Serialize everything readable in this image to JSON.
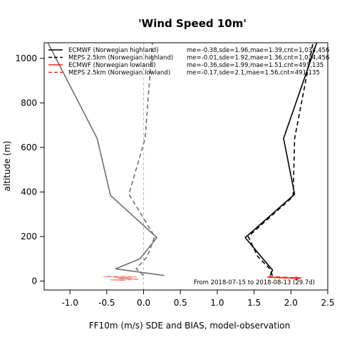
{
  "chart_data": {
    "type": "line",
    "title": "'Wind Speed 10m'",
    "xlabel": "FF10m (m/s) SDE and BIAS, model-observation",
    "ylabel": "altitude (m)",
    "xlim": [
      -1.35,
      2.5
    ],
    "ylim": [
      -40,
      1070
    ],
    "xticks": [
      -1.0,
      -0.5,
      0.0,
      0.5,
      1.0,
      1.5,
      2.0,
      2.5
    ],
    "xtick_labels": [
      "-1.0",
      "-0.5",
      "0.0",
      "0.5",
      "1.0",
      "1.5",
      "2.0",
      "2.5"
    ],
    "yticks": [
      0,
      200,
      400,
      600,
      800,
      1000
    ],
    "ytick_labels": [
      "0",
      "200",
      "400",
      "600",
      "800",
      "1000"
    ],
    "reference_line_x": 0,
    "legend_position": "top-left",
    "legend": [
      {
        "name": "ECMWF (Norwegian highland)",
        "color": "#000000",
        "dash": "solid",
        "stats": "me=-0.38,sde=1.96,mae=1.39,cnt=1,034,456"
      },
      {
        "name": "MEPS 2.5km (Norwegian highland)",
        "color": "#000000",
        "dash": "dashed",
        "stats": "me=-0.01,sde=1.92,mae=1.36,cnt=1,034,456"
      },
      {
        "name": "ECMWF (Norwegian lowland)",
        "color": "#e8281e",
        "dash": "solid",
        "stats": "me=-0.36,sde=1.99,mae=1.51,cnt=491,135"
      },
      {
        "name": "MEPS 2.5km (Norwegian lowland)",
        "color": "#e8281e",
        "dash": "dashed",
        "stats": "me=-0.17,sde=2.1,mae=1.56,cnt=491,135"
      }
    ],
    "series": [
      {
        "group": "sde-highland-ecmwf",
        "color": "#000000",
        "dash": "solid",
        "width": 1.6,
        "points": [
          [
            1.72,
            25
          ],
          [
            1.75,
            50
          ],
          [
            1.62,
            100
          ],
          [
            1.38,
            195
          ],
          [
            2.05,
            390
          ],
          [
            1.9,
            640
          ],
          [
            2.35,
            1070
          ]
        ]
      },
      {
        "group": "sde-highland-meps",
        "color": "#000000",
        "dash": "dashed",
        "width": 1.6,
        "points": [
          [
            1.75,
            25
          ],
          [
            1.7,
            60
          ],
          [
            1.55,
            110
          ],
          [
            1.42,
            200
          ],
          [
            2.03,
            380
          ],
          [
            2.05,
            640
          ],
          [
            2.3,
            1070
          ]
        ]
      },
      {
        "group": "sde-lowland-ecmwf",
        "color": "#e8281e",
        "dash": "solid",
        "width": 1.6,
        "points": [
          [
            1.68,
            18
          ],
          [
            1.85,
            15
          ],
          [
            2.12,
            12
          ]
        ]
      },
      {
        "group": "sde-lowland-meps",
        "color": "#e8281e",
        "dash": "dashed",
        "width": 1.6,
        "points": [
          [
            1.7,
            20
          ],
          [
            1.9,
            17
          ],
          [
            2.15,
            14
          ]
        ]
      },
      {
        "group": "bias-highland-ecmwf",
        "color": "#707070",
        "dash": "solid",
        "width": 1.6,
        "points": [
          [
            0.28,
            25
          ],
          [
            -0.38,
            55
          ],
          [
            -0.05,
            100
          ],
          [
            0.18,
            195
          ],
          [
            -0.45,
            385
          ],
          [
            -0.63,
            640
          ],
          [
            -1.3,
            1070
          ]
        ]
      },
      {
        "group": "bias-highland-meps",
        "color": "#707070",
        "dash": "dashed",
        "width": 1.6,
        "points": [
          [
            0.0,
            25
          ],
          [
            -0.1,
            55
          ],
          [
            0.05,
            110
          ],
          [
            0.15,
            200
          ],
          [
            -0.2,
            390
          ],
          [
            0.02,
            640
          ],
          [
            0.12,
            1070
          ]
        ]
      },
      {
        "group": "bias-lowland-ecmwf",
        "color": "#f08a82",
        "dash": "solid",
        "width": 1.0,
        "points": [
          [
            -0.55,
            20
          ],
          [
            -0.15,
            18
          ],
          [
            -0.4,
            15
          ],
          [
            -0.1,
            10
          ],
          [
            -0.45,
            5
          ],
          [
            -0.25,
            3
          ]
        ]
      },
      {
        "group": "bias-lowland-meps",
        "color": "#f08a82",
        "dash": "dashed",
        "width": 1.0,
        "points": [
          [
            -0.5,
            22
          ],
          [
            -0.1,
            20
          ],
          [
            -0.35,
            12
          ],
          [
            -0.05,
            8
          ],
          [
            -0.3,
            4
          ]
        ]
      }
    ],
    "annotation": "From 2018-07-15 to 2018-08-13 (29.7d)"
  }
}
